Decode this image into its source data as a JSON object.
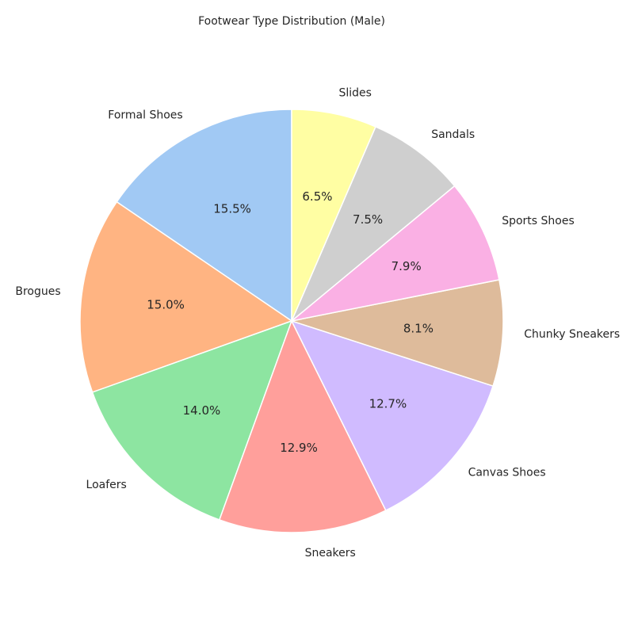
{
  "chart_data": {
    "type": "pie",
    "title": "Footwear Type Distribution (Male)",
    "categories": [
      "Formal Shoes",
      "Brogues",
      "Loafers",
      "Sneakers",
      "Canvas Shoes",
      "Chunky Sneakers",
      "Sports Shoes",
      "Sandals",
      "Slides"
    ],
    "values": [
      15.5,
      15.0,
      14.0,
      12.9,
      12.7,
      8.1,
      7.9,
      7.5,
      6.5
    ],
    "percent_labels": [
      "15.5%",
      "15.0%",
      "14.0%",
      "12.9%",
      "12.7%",
      "8.1%",
      "7.9%",
      "7.5%",
      "6.5%"
    ],
    "colors": [
      "#a1c9f4",
      "#ffb482",
      "#8de5a1",
      "#ff9f9b",
      "#d0bbff",
      "#debb9b",
      "#fab0e4",
      "#cfcfcf",
      "#fffea3"
    ],
    "start_angle": "top",
    "direction": "counterclockwise",
    "legend": "none"
  }
}
